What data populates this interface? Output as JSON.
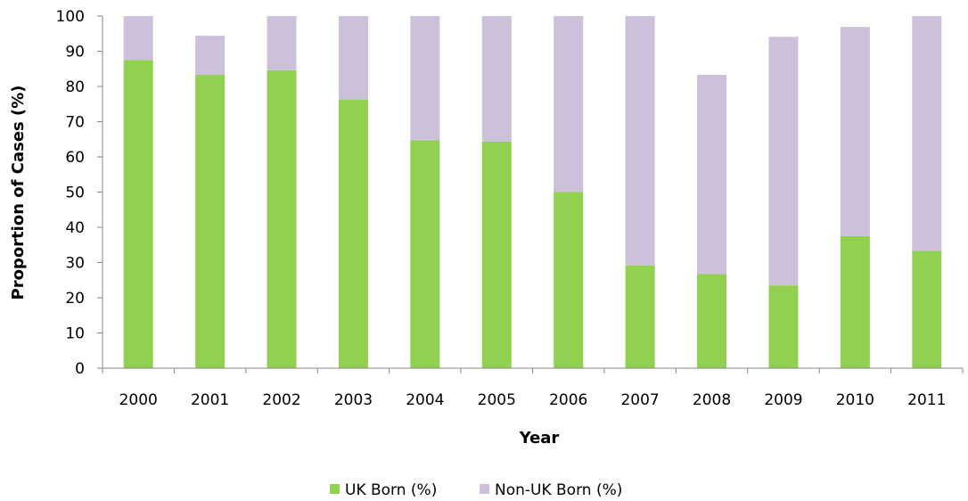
{
  "chart_data": {
    "type": "bar",
    "stacked": true,
    "title": "",
    "xlabel": "Year",
    "ylabel": "Proportion of Cases (%)",
    "ylim": [
      0,
      100
    ],
    "yticks": [
      0,
      10,
      20,
      30,
      40,
      50,
      60,
      70,
      80,
      90,
      100
    ],
    "grid": false,
    "legend_position": "bottom",
    "categories": [
      "2000",
      "2001",
      "2002",
      "2003",
      "2004",
      "2005",
      "2006",
      "2007",
      "2008",
      "2009",
      "2010",
      "2011"
    ],
    "series": [
      {
        "name": "UK Born (%)",
        "color": "#92d050",
        "values": [
          87.5,
          83.3,
          84.6,
          76.3,
          64.7,
          64.3,
          50.0,
          29.2,
          26.7,
          23.5,
          37.5,
          33.3
        ]
      },
      {
        "name": "Non-UK Born (%)",
        "color": "#ccc0da",
        "values": [
          12.5,
          11.1,
          15.4,
          23.7,
          35.3,
          35.7,
          50.0,
          70.8,
          56.6,
          70.6,
          59.4,
          66.7
        ]
      }
    ]
  }
}
